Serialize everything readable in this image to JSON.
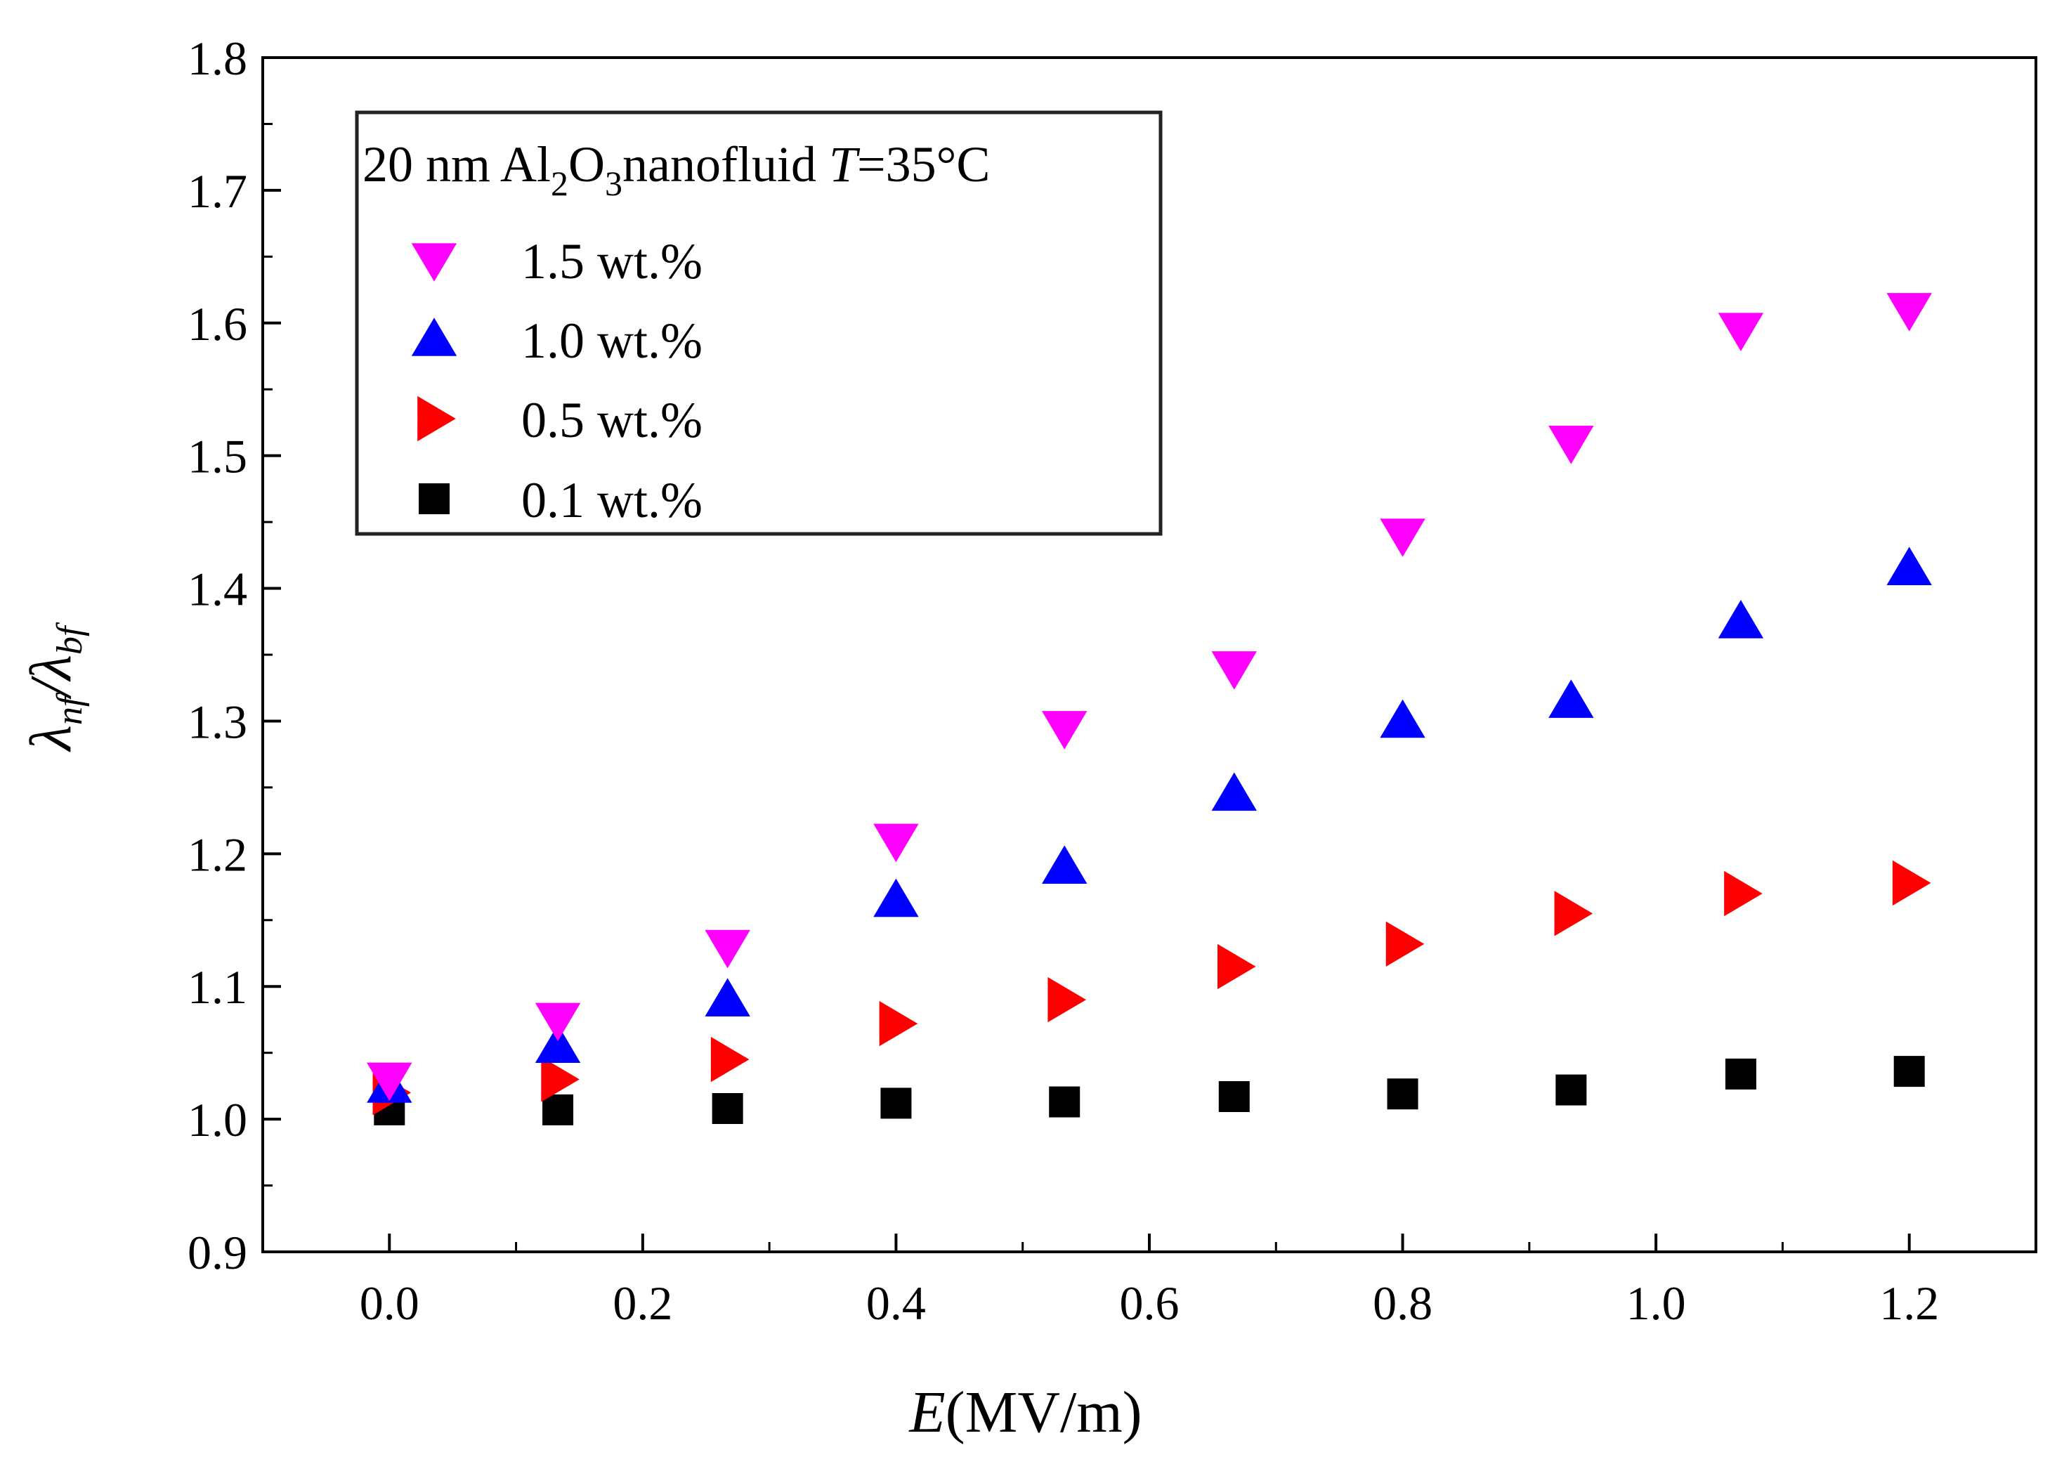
{
  "chart_data": {
    "type": "scatter",
    "title": "20 nm Al2O3nanofluid T=35°C",
    "legend_title": {
      "prefix": "20 nm Al",
      "sub1": "2",
      "mid": "O",
      "sub2": "3",
      "suffix": "nanofluid ",
      "var": "T",
      "tail": "=35°C"
    },
    "xlabel": {
      "var": "E",
      "unit": "(MV/m)"
    },
    "ylabel": {
      "lambda": "λ",
      "sub_nf": "nf",
      "slash": "/",
      "sub_bf": "bf"
    },
    "xlim": [
      -0.1,
      1.3
    ],
    "ylim": [
      0.9,
      1.8
    ],
    "x_ticks": [
      "0.0",
      "0.2",
      "0.4",
      "0.6",
      "0.8",
      "1.0",
      "1.2"
    ],
    "y_ticks": [
      "0.9",
      "1.0",
      "1.1",
      "1.2",
      "1.3",
      "1.4",
      "1.5",
      "1.6",
      "1.7",
      "1.8"
    ],
    "legend_position": "top-left",
    "series": [
      {
        "name": "1.5 wt.%",
        "marker": "triangle-down",
        "color": "#ff00ff",
        "x": [
          0.0,
          0.133,
          0.267,
          0.4,
          0.533,
          0.667,
          0.8,
          0.933,
          1.067,
          1.2
        ],
        "y": [
          1.03,
          1.075,
          1.13,
          1.21,
          1.295,
          1.34,
          1.44,
          1.51,
          1.595,
          1.61
        ]
      },
      {
        "name": "1.0 wt.%",
        "marker": "triangle-up",
        "color": "#0000ff",
        "x": [
          0.0,
          0.133,
          0.267,
          0.4,
          0.533,
          0.667,
          0.8,
          0.933,
          1.067,
          1.2
        ],
        "y": [
          1.025,
          1.055,
          1.09,
          1.165,
          1.19,
          1.245,
          1.3,
          1.315,
          1.375,
          1.415
        ]
      },
      {
        "name": "0.5 wt.%",
        "marker": "triangle-right",
        "color": "#ff0000",
        "x": [
          0.0,
          0.133,
          0.267,
          0.4,
          0.533,
          0.667,
          0.8,
          0.933,
          1.067,
          1.2
        ],
        "y": [
          1.02,
          1.03,
          1.045,
          1.072,
          1.09,
          1.115,
          1.132,
          1.155,
          1.17,
          1.178
        ]
      },
      {
        "name": "0.1 wt.%",
        "marker": "square",
        "color": "#000000",
        "x": [
          0.0,
          0.133,
          0.267,
          0.4,
          0.533,
          0.667,
          0.8,
          0.933,
          1.067,
          1.2
        ],
        "y": [
          1.007,
          1.007,
          1.008,
          1.012,
          1.013,
          1.017,
          1.019,
          1.022,
          1.034,
          1.036
        ]
      }
    ]
  }
}
